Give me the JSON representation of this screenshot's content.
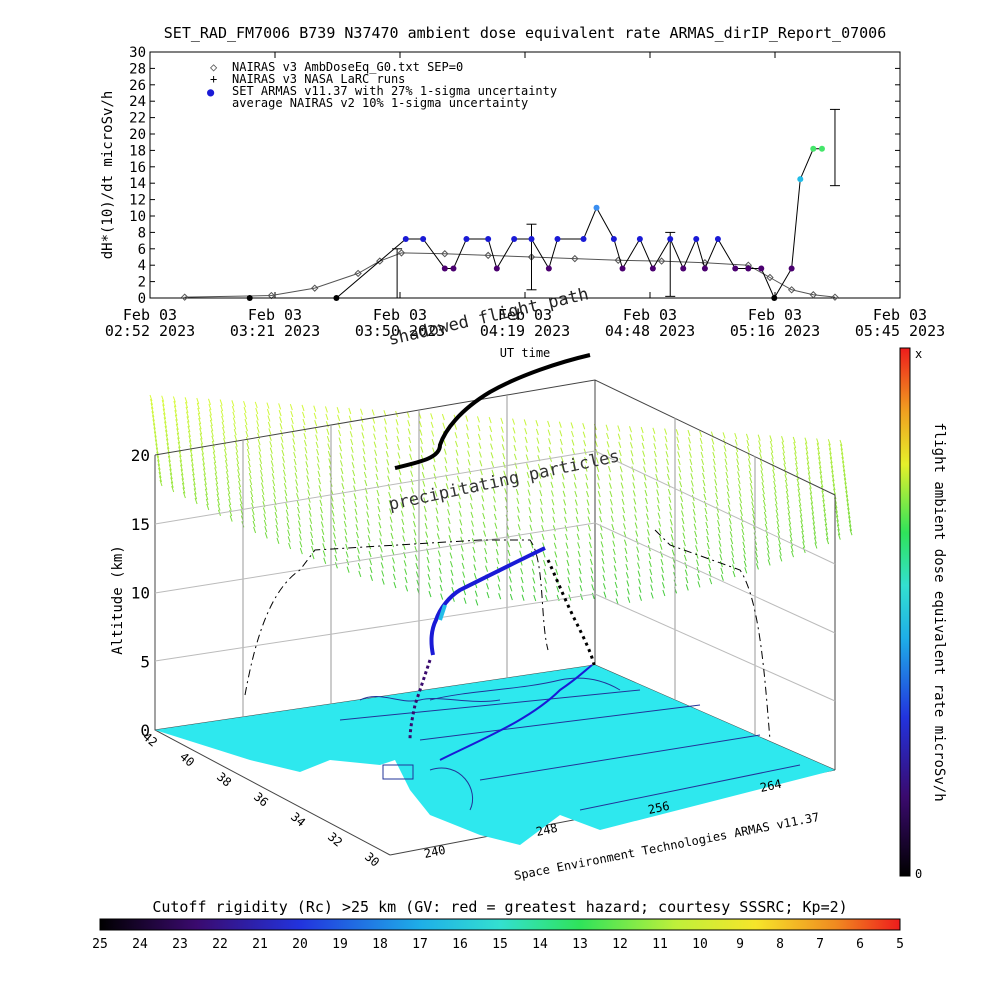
{
  "title": "SET_RAD_FM7006  B739 N37470 ambient dose equivalent rate ARMAS_dirIP_Report_07006",
  "colors": {
    "armas": "#1a1ad6",
    "armas_low": "#4b0070",
    "green": "#44e66a",
    "cyan": "#22bde8",
    "map": "#2ee8ee",
    "nairas": "#555555"
  },
  "chart_data": [
    {
      "type": "scatter",
      "ylabel": "dH*(10)/dt microSv/h",
      "xlabel": "UT time",
      "ylim": [
        0,
        30
      ],
      "y_ticks": [
        "0",
        "2",
        "4",
        "6",
        "8",
        "10",
        "12",
        "14",
        "16",
        "18",
        "20",
        "22",
        "24",
        "26",
        "28",
        "30"
      ],
      "x_ticks": [
        {
          "l1": "Feb 03",
          "l2": "02:52 2023"
        },
        {
          "l1": "Feb 03",
          "l2": "03:21 2023"
        },
        {
          "l1": "Feb 03",
          "l2": "03:50 2023"
        },
        {
          "l1": "Feb 03",
          "l2": "04:19 2023"
        },
        {
          "l1": "Feb 03",
          "l2": "04:48 2023"
        },
        {
          "l1": "Feb 03",
          "l2": "05:16 2023"
        },
        {
          "l1": "Feb 03",
          "l2": "05:45 2023"
        }
      ],
      "legend": [
        {
          "symbol": "◇",
          "label": "NAIRAS v3 AmbDoseEq_G0.txt SEP=0"
        },
        {
          "symbol": "+",
          "label": "NAIRAS v3 NASA LaRC runs"
        },
        {
          "symbol": "●",
          "label": "SET ARMAS v11.37 with 27% 1-sigma uncertainty"
        },
        {
          "symbol": "",
          "label": "average NAIRAS v2 10% 1-sigma uncertainty"
        }
      ],
      "series": [
        {
          "name": "SET ARMAS v11.37 with 27% 1-sigma uncertainty",
          "x": [
            "03:15",
            "03:35",
            "03:51",
            "03:55",
            "04:00",
            "04:02",
            "04:05",
            "04:10",
            "04:12",
            "04:16",
            "04:20",
            "04:24",
            "04:26",
            "04:32",
            "04:35",
            "04:39",
            "04:41",
            "04:45",
            "04:48",
            "04:52",
            "04:55",
            "04:58",
            "05:00",
            "05:03",
            "05:07",
            "05:10",
            "05:13",
            "05:16",
            "05:20",
            "05:22",
            "05:25",
            "05:27"
          ],
          "y": [
            0,
            0,
            7.2,
            7.2,
            3.6,
            3.6,
            7.2,
            7.2,
            3.6,
            7.2,
            7.2,
            3.6,
            7.2,
            7.2,
            11,
            7.2,
            3.6,
            7.2,
            3.6,
            7.2,
            3.6,
            7.2,
            3.6,
            7.2,
            3.6,
            3.6,
            3.6,
            0,
            3.6,
            14.5,
            18.2,
            18.2
          ]
        },
        {
          "name": "NAIRAS v3 AmbDoseEq_G0.txt SEP=0",
          "x": [
            "03:00",
            "03:20",
            "03:30",
            "03:40",
            "03:45",
            "03:50",
            "04:00",
            "04:10",
            "04:20",
            "04:30",
            "04:40",
            "04:50",
            "05:00",
            "05:10",
            "05:15",
            "05:20",
            "05:25",
            "05:30"
          ],
          "y": [
            0.1,
            0.3,
            1.2,
            3,
            4.5,
            5.5,
            5.4,
            5.2,
            5,
            4.8,
            4.6,
            4.5,
            4.3,
            4,
            2.5,
            1,
            0.4,
            0.1
          ]
        }
      ],
      "error_bars": [
        {
          "x": "03:49",
          "center": 3,
          "lo": 0,
          "hi": 6
        },
        {
          "x": "04:20",
          "center": 5,
          "lo": 1,
          "hi": 9
        },
        {
          "x": "04:52",
          "center": 4.5,
          "lo": 0.2,
          "hi": 8
        },
        {
          "x": "05:30",
          "center": 18.3,
          "lo": 13.7,
          "hi": 23
        }
      ]
    },
    {
      "type": "scatter",
      "zlabel": "Altitude (km)",
      "z_ticks": [
        "0",
        "5",
        "10",
        "15",
        "20"
      ],
      "lat_ticks": [
        "42",
        "40",
        "38",
        "36",
        "34",
        "32",
        "30"
      ],
      "lon_ticks": [
        "240",
        "248",
        "256",
        "264"
      ],
      "annotations": [
        "shadowed flight path",
        "precipitating particles"
      ],
      "credit": "Space Environment Technologies ARMAS v11.37"
    }
  ],
  "right_colorbar": {
    "label": "flight ambient dose equivalent rate microSv/h",
    "top": "x",
    "bottom": "0"
  },
  "bottom_colorbar": {
    "label": "Cutoff rigidity (Rc) >25 km (GV: red = greatest hazard; courtesy SSSRC; Kp=2)",
    "ticks": [
      "25",
      "24",
      "23",
      "22",
      "21",
      "20",
      "19",
      "18",
      "17",
      "16",
      "15",
      "14",
      "13",
      "12",
      "11",
      "10",
      "9",
      "8",
      "7",
      "6",
      "5"
    ]
  }
}
